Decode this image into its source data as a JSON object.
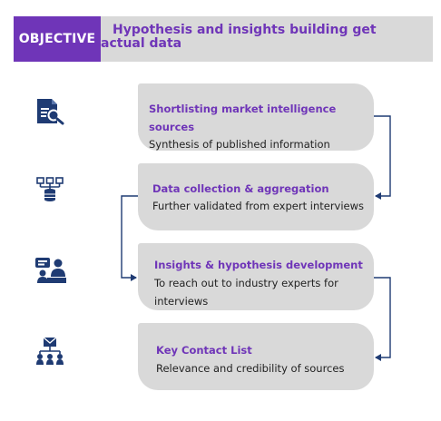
{
  "header": {
    "badge_label": "OBJECTIVE",
    "title": "Hypothesis and insights building get actual data"
  },
  "steps": [
    {
      "icon": "document-search-icon",
      "title": "Shortlisting market intelligence sources",
      "description": "Synthesis of published information"
    },
    {
      "icon": "database-network-icon",
      "title": "Data collection & aggregation",
      "description": "Further validated from expert interviews"
    },
    {
      "icon": "meeting-presentation-icon",
      "title": "Insights & hypothesis development",
      "description": "To reach out to industry experts for interviews"
    },
    {
      "icon": "contact-network-icon",
      "title": "Key Contact List",
      "description": "Relevance and credibility of sources"
    }
  ],
  "colors": {
    "accent_purple": "#6f35b8",
    "icon_navy": "#1f3b73",
    "card_grey": "#d9d9d9",
    "connector_navy": "#1f3b73"
  }
}
